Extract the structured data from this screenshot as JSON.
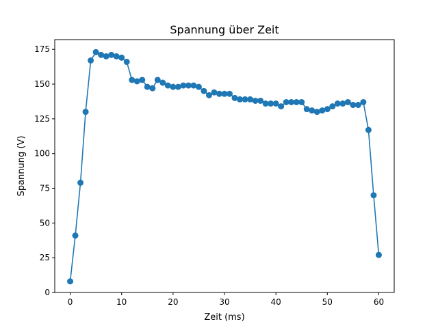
{
  "chart_data": {
    "type": "line",
    "title": "Spannung über Zeit",
    "xlabel": "Zeit (ms)",
    "ylabel": "Spannung (V)",
    "xlim": [
      -3,
      63
    ],
    "ylim": [
      0,
      182
    ],
    "xticks": [
      0,
      10,
      20,
      30,
      40,
      50,
      60
    ],
    "yticks": [
      0,
      25,
      50,
      75,
      100,
      125,
      150,
      175
    ],
    "grid": false,
    "color": "#1f77b4",
    "marker": "circle",
    "series": [
      {
        "x": [
          0,
          1,
          2,
          3,
          4,
          5,
          6,
          7,
          8,
          9,
          10,
          11,
          12,
          13,
          14,
          15,
          16,
          17,
          18,
          19,
          20,
          21,
          22,
          23,
          24,
          25,
          26,
          27,
          28,
          29,
          30,
          31,
          32,
          33,
          34,
          35,
          36,
          37,
          38,
          39,
          40,
          41,
          42,
          43,
          44,
          45,
          46,
          47,
          48,
          49,
          50,
          51,
          52,
          53,
          54,
          55,
          56,
          57,
          58,
          59,
          60
        ],
        "values": [
          8,
          41,
          79,
          130,
          167,
          173,
          171,
          170,
          171,
          170,
          169,
          166,
          153,
          152,
          153,
          148,
          147,
          153,
          151,
          149,
          148,
          148,
          149,
          149,
          149,
          148,
          145,
          142,
          144,
          143,
          143,
          143,
          140,
          139,
          139,
          139,
          138,
          138,
          136,
          136,
          136,
          134,
          137,
          137,
          137,
          137,
          132,
          131,
          130,
          131,
          132,
          134,
          136,
          136,
          137,
          135,
          135,
          137,
          117,
          70,
          27
        ]
      }
    ]
  }
}
